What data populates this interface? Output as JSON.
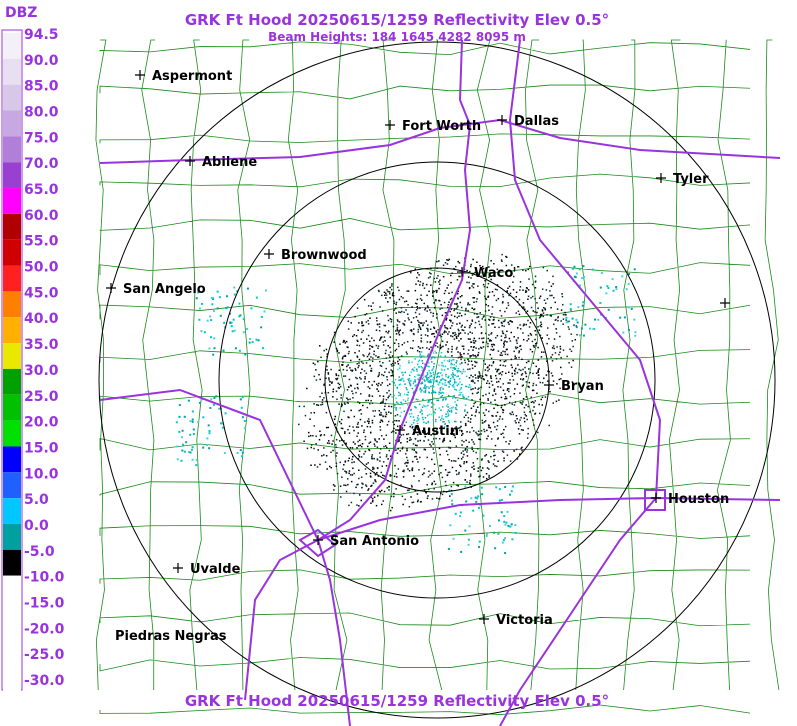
{
  "header": {
    "title": "GRK Ft Hood 20250615/1259 Reflectivity Elev 0.5°",
    "subtitle": "Beam Heights: 184 1645 4282 8095 m"
  },
  "legend": {
    "title": "DBZ",
    "labels": [
      "94.5",
      "90.0",
      "85.0",
      "80.0",
      "75.0",
      "70.0",
      "65.0",
      "60.0",
      "55.0",
      "50.0",
      "45.0",
      "40.0",
      "35.0",
      "30.0",
      "25.0",
      "20.0",
      "15.0",
      "10.0",
      "5.0",
      "0.0",
      "-5.0",
      "-10.0",
      "-15.0",
      "-20.0",
      "-25.0",
      "-30.0"
    ]
  },
  "cities": [
    {
      "label": "Aspermont"
    },
    {
      "label": "Abilene"
    },
    {
      "label": "Fort Worth"
    },
    {
      "label": "Dallas"
    },
    {
      "label": "Tyler"
    },
    {
      "label": "Brownwood"
    },
    {
      "label": "San Angelo"
    },
    {
      "label": "Waco"
    },
    {
      "label": "Bryan"
    },
    {
      "label": "Austin"
    },
    {
      "label": "Houston"
    },
    {
      "label": "San Antonio"
    },
    {
      "label": "Uvalde"
    },
    {
      "label": "Victoria"
    },
    {
      "label": "Piedras Negras"
    }
  ],
  "footer": {
    "title": "GRK Ft Hood 20250615/1259 Reflectivity Elev 0.5°"
  }
}
